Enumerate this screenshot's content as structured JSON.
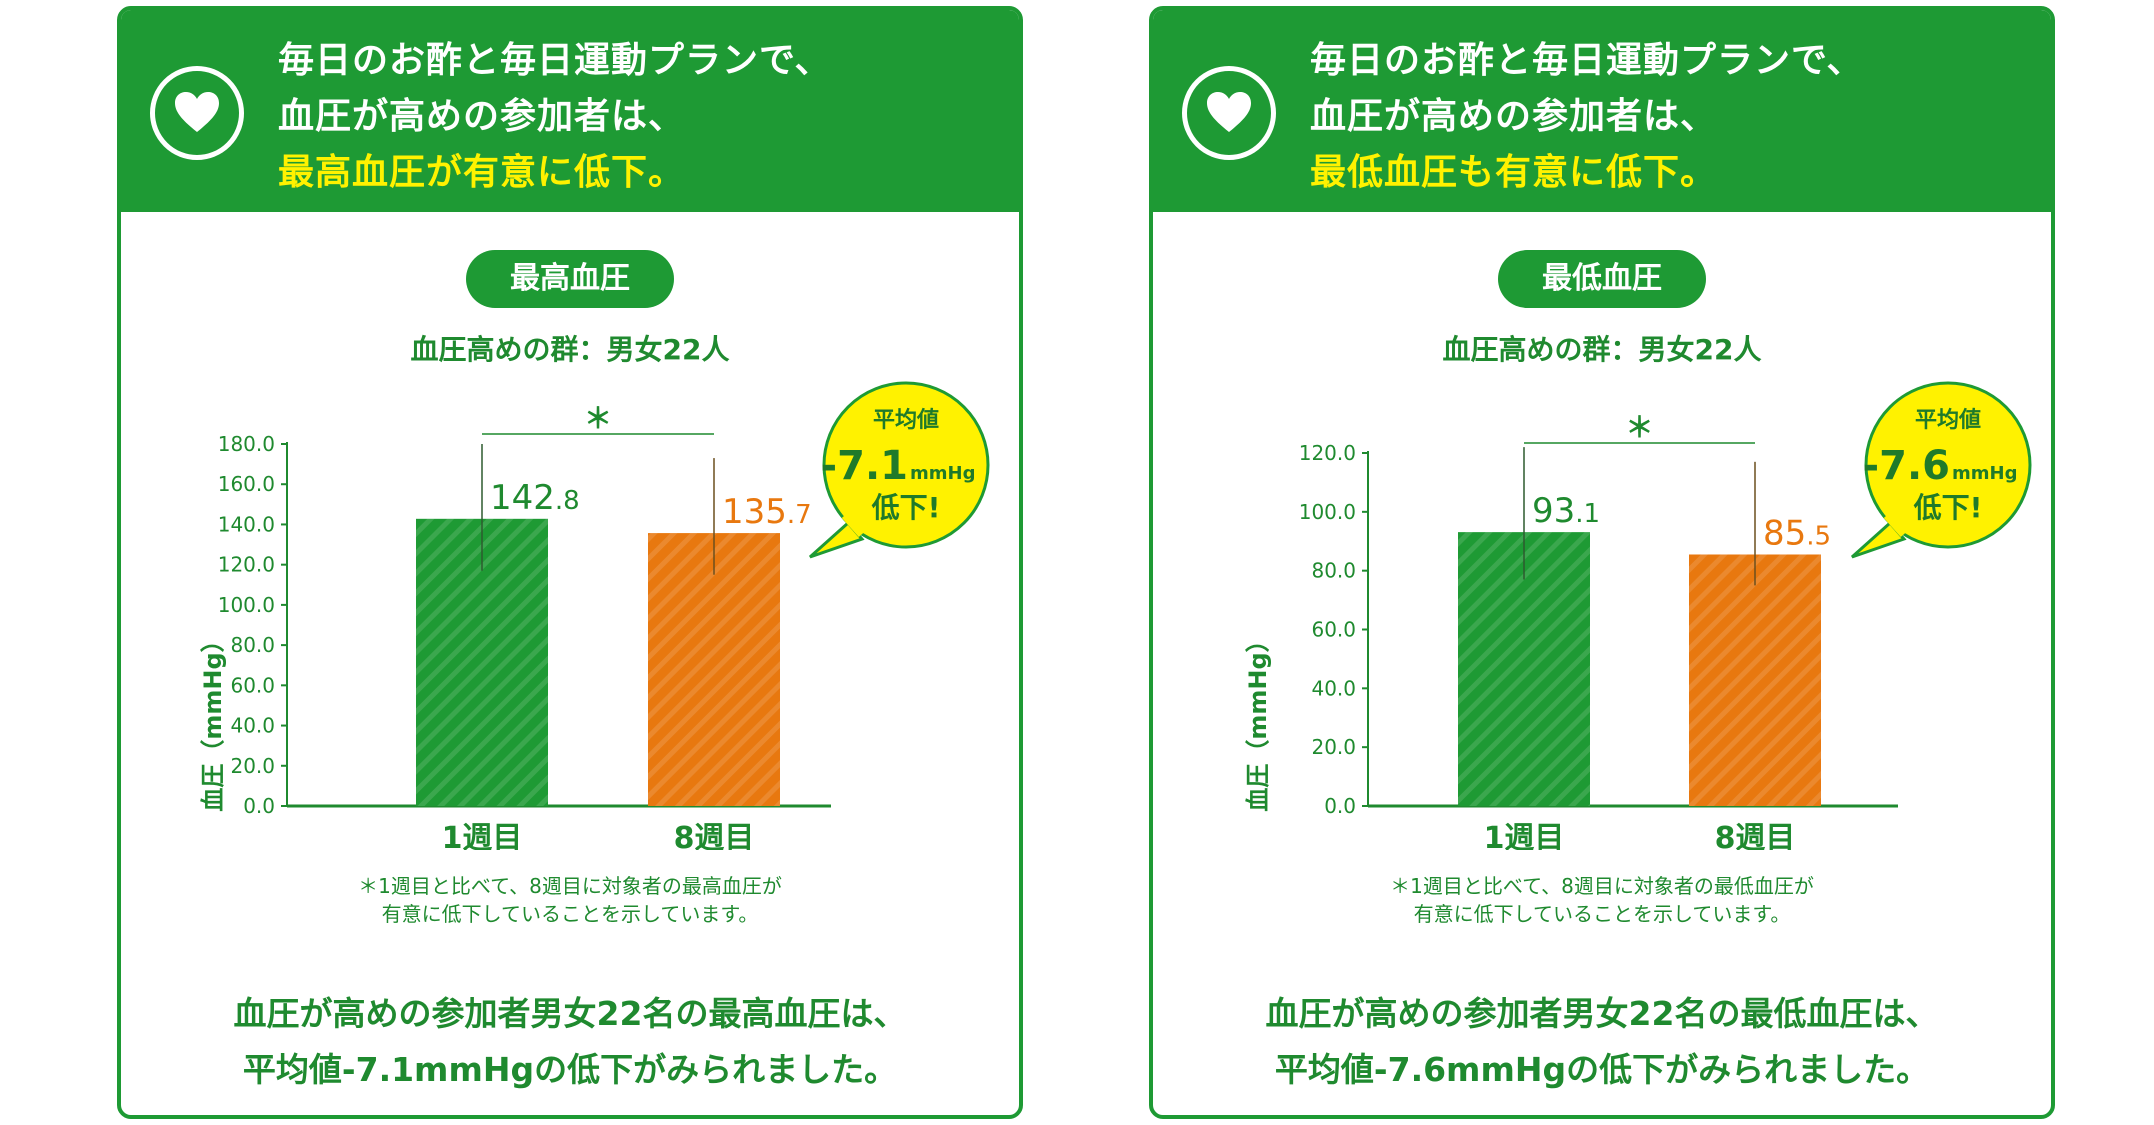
{
  "colors": {
    "green": "#1e9a34",
    "orange": "#e8780f",
    "yellow": "#fff200",
    "text_green": "#1f8a2f"
  },
  "icons": {
    "header": "heart-icon"
  },
  "cards": [
    {
      "header": {
        "line1": "毎日のお酢と毎日運動プランで、",
        "line2": "血圧が高めの参加者は、",
        "line3": "最高血圧が有意に低下。"
      },
      "pill": "最高血圧",
      "group": "血圧高めの群：男女22人",
      "annotation": {
        "top": "平均値",
        "value": "-7.1",
        "unit": "mmHg",
        "bottom": "低下!"
      },
      "caption": {
        "line1": "＊1週目と比べて、8週目に対象者の最高血圧が",
        "line2": "有意に低下していることを示しています。"
      },
      "summary": {
        "line1": "血圧が高めの参加者男女22名の最高血圧は、",
        "line2": "平均値-7.1mmHgの低下がみられました。"
      }
    },
    {
      "header": {
        "line1": "毎日のお酢と毎日運動プランで、",
        "line2": "血圧が高めの参加者は、",
        "line3": "最低血圧も有意に低下。"
      },
      "pill": "最低血圧",
      "group": "血圧高めの群：男女22人",
      "annotation": {
        "top": "平均値",
        "value": "-7.6",
        "unit": "mmHg",
        "bottom": "低下!"
      },
      "caption": {
        "line1": "＊1週目と比べて、8週目に対象者の最低血圧が",
        "line2": "有意に低下していることを示しています。"
      },
      "summary": {
        "line1": "血圧が高めの参加者男女22名の最低血圧は、",
        "line2": "平均値-7.6mmHgの低下がみられました。"
      }
    }
  ],
  "chart_data": [
    {
      "type": "bar",
      "title": "最高血圧",
      "ylabel": "血圧（mmHg）",
      "categories": [
        "1週目",
        "8週目"
      ],
      "values": [
        142.8,
        135.7
      ],
      "value_labels": [
        {
          "int": "142",
          "dec": ".8"
        },
        {
          "int": "135",
          "dec": ".7"
        }
      ],
      "error_bar_range": [
        [
          117,
          180
        ],
        [
          115,
          173
        ]
      ],
      "ylim": [
        0,
        180
      ],
      "yticks": [
        "0.0",
        "20.0",
        "40.0",
        "60.0",
        "80.0",
        "100.0",
        "120.0",
        "140.0",
        "160.0",
        "180.0"
      ],
      "significance": "＊",
      "bar_colors": [
        "#1e9a34",
        "#e8780f"
      ]
    },
    {
      "type": "bar",
      "title": "最低血圧",
      "ylabel": "血圧（mmHg）",
      "categories": [
        "1週目",
        "8週目"
      ],
      "values": [
        93.1,
        85.5
      ],
      "value_labels": [
        {
          "int": "93",
          "dec": ".1"
        },
        {
          "int": "85",
          "dec": ".5"
        }
      ],
      "error_bar_range": [
        [
          77,
          122
        ],
        [
          75,
          117
        ]
      ],
      "ylim": [
        0,
        120
      ],
      "yticks": [
        "0.0",
        "20.0",
        "40.0",
        "60.0",
        "80.0",
        "100.0",
        "120.0"
      ],
      "significance": "＊",
      "bar_colors": [
        "#1e9a34",
        "#e8780f"
      ]
    }
  ]
}
